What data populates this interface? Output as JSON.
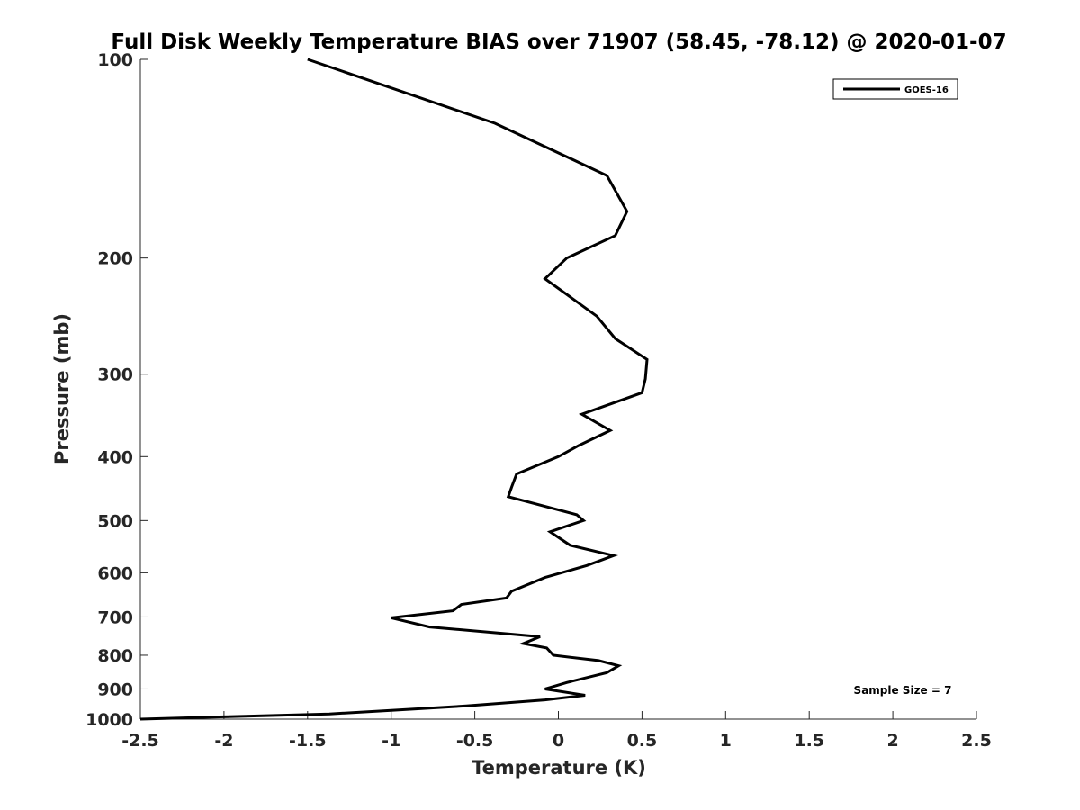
{
  "chart_data": {
    "type": "line",
    "title": "Full Disk Weekly Temperature BIAS over 71907 (58.45, -78.12) @ 2020-01-07",
    "xlabel": "Temperature (K)",
    "ylabel": "Pressure (mb)",
    "xlim": [
      -2.5,
      2.5
    ],
    "ylim": [
      100,
      1000
    ],
    "yscale": "log",
    "yaxis_reversed": true,
    "xticks": [
      -2.5,
      -2,
      -1.5,
      -1,
      -0.5,
      0,
      0.5,
      1,
      1.5,
      2,
      2.5
    ],
    "xtick_labels": [
      "-2.5",
      "-2",
      "-1.5",
      "-1",
      "-0.5",
      "0",
      "0.5",
      "1",
      "1.5",
      "2",
      "2.5"
    ],
    "yticks": [
      100,
      200,
      300,
      400,
      500,
      600,
      700,
      800,
      900,
      1000
    ],
    "ytick_labels": [
      "100",
      "200",
      "300",
      "400",
      "500",
      "600",
      "700",
      "800",
      "900",
      "1000"
    ],
    "grid": false,
    "legend_position": "top-right",
    "annotation": "Sample Size = 7",
    "series": [
      {
        "name": "GOES-16",
        "color": "#000000",
        "points": [
          {
            "x": -1.5,
            "y": 100
          },
          {
            "x": -0.38,
            "y": 125
          },
          {
            "x": 0.29,
            "y": 150
          },
          {
            "x": 0.41,
            "y": 170
          },
          {
            "x": 0.34,
            "y": 185
          },
          {
            "x": 0.05,
            "y": 200
          },
          {
            "x": -0.08,
            "y": 215
          },
          {
            "x": 0.23,
            "y": 245
          },
          {
            "x": 0.34,
            "y": 265
          },
          {
            "x": 0.53,
            "y": 285
          },
          {
            "x": 0.52,
            "y": 305
          },
          {
            "x": 0.5,
            "y": 320
          },
          {
            "x": 0.14,
            "y": 345
          },
          {
            "x": 0.31,
            "y": 365
          },
          {
            "x": 0.12,
            "y": 385
          },
          {
            "x": 0.0,
            "y": 400
          },
          {
            "x": -0.25,
            "y": 425
          },
          {
            "x": -0.28,
            "y": 445
          },
          {
            "x": -0.3,
            "y": 460
          },
          {
            "x": 0.11,
            "y": 490
          },
          {
            "x": 0.15,
            "y": 500
          },
          {
            "x": -0.05,
            "y": 520
          },
          {
            "x": 0.07,
            "y": 545
          },
          {
            "x": 0.33,
            "y": 565
          },
          {
            "x": 0.17,
            "y": 585
          },
          {
            "x": -0.08,
            "y": 610
          },
          {
            "x": -0.28,
            "y": 640
          },
          {
            "x": -0.31,
            "y": 655
          },
          {
            "x": -0.58,
            "y": 670
          },
          {
            "x": -0.63,
            "y": 685
          },
          {
            "x": -1.0,
            "y": 702
          },
          {
            "x": -0.77,
            "y": 725
          },
          {
            "x": -0.11,
            "y": 750
          },
          {
            "x": -0.21,
            "y": 768
          },
          {
            "x": -0.07,
            "y": 780
          },
          {
            "x": -0.03,
            "y": 800
          },
          {
            "x": 0.24,
            "y": 815
          },
          {
            "x": 0.36,
            "y": 830
          },
          {
            "x": 0.29,
            "y": 850
          },
          {
            "x": 0.05,
            "y": 880
          },
          {
            "x": -0.08,
            "y": 900
          },
          {
            "x": 0.16,
            "y": 920
          },
          {
            "x": -0.08,
            "y": 935
          },
          {
            "x": -0.55,
            "y": 955
          },
          {
            "x": -1.0,
            "y": 970
          },
          {
            "x": -1.37,
            "y": 982
          },
          {
            "x": -2.0,
            "y": 992
          },
          {
            "x": -2.5,
            "y": 1000
          }
        ]
      }
    ]
  }
}
